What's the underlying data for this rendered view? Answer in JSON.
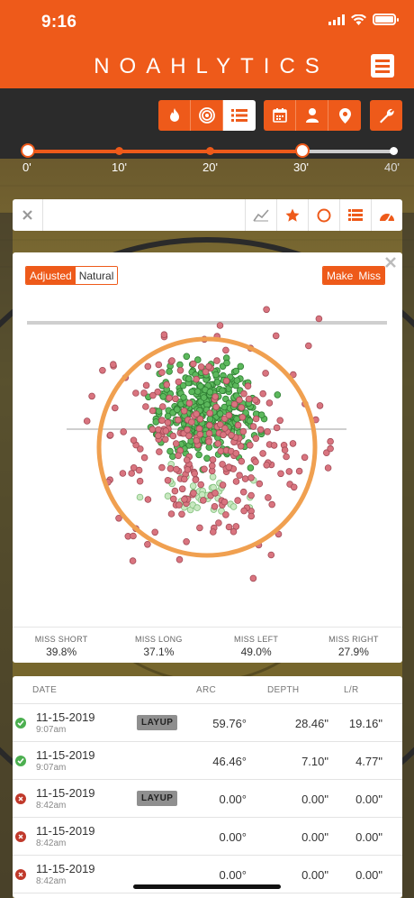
{
  "status": {
    "time": "9:16"
  },
  "header": {
    "logo": "NOAHLYTICS"
  },
  "slider": {
    "ticks": [
      "0'",
      "10'",
      "20'",
      "30'",
      "40'"
    ],
    "range_start": "0'",
    "range_end": "30'"
  },
  "chart": {
    "toggle_left": {
      "on": "Adjusted",
      "off": "Natural"
    },
    "toggle_right": {
      "on": "Make",
      "off": "Miss"
    },
    "stats": [
      {
        "label": "MISS SHORT",
        "value": "39.8%"
      },
      {
        "label": "MISS LONG",
        "value": "37.1%"
      },
      {
        "label": "MISS LEFT",
        "value": "49.0%"
      },
      {
        "label": "MISS RIGHT",
        "value": "27.9%"
      }
    ],
    "colors": {
      "make": "#5cb85c",
      "miss": "#d9747f",
      "rim": "#f0a050"
    }
  },
  "table": {
    "headers": {
      "date": "DATE",
      "arc": "ARC",
      "depth": "DEPTH",
      "lr": "L/R"
    },
    "rows": [
      {
        "result": "make",
        "date": "11-15-2019",
        "time": "9:07am",
        "tag": "LAYUP",
        "arc": "59.76°",
        "depth": "28.46\"",
        "lr": "19.16\""
      },
      {
        "result": "make",
        "date": "11-15-2019",
        "time": "9:07am",
        "tag": "",
        "arc": "46.46°",
        "depth": "7.10\"",
        "lr": "4.77\""
      },
      {
        "result": "miss",
        "date": "11-15-2019",
        "time": "8:42am",
        "tag": "LAYUP",
        "arc": "0.00°",
        "depth": "0.00\"",
        "lr": "0.00\""
      },
      {
        "result": "miss",
        "date": "11-15-2019",
        "time": "8:42am",
        "tag": "",
        "arc": "0.00°",
        "depth": "0.00\"",
        "lr": "0.00\""
      },
      {
        "result": "miss",
        "date": "11-15-2019",
        "time": "8:42am",
        "tag": "",
        "arc": "0.00°",
        "depth": "0.00\"",
        "lr": "0.00\""
      }
    ]
  }
}
